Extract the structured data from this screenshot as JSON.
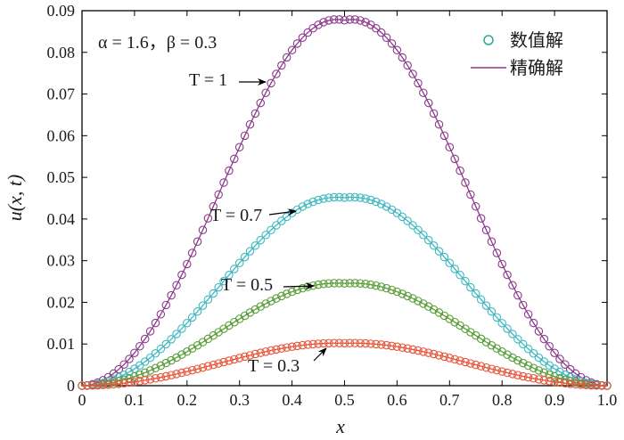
{
  "chart_data": {
    "type": "line",
    "xlabel": "x",
    "ylabel": "u(x, t)",
    "xlim": [
      0,
      1
    ],
    "ylim": [
      0,
      0.09
    ],
    "x_ticks": [
      "0",
      "0.1",
      "0.2",
      "0.3",
      "0.4",
      "0.5",
      "0.6",
      "0.7",
      "0.8",
      "0.9",
      "1.0"
    ],
    "y_ticks": [
      "0",
      "0.01",
      "0.02",
      "0.03",
      "0.04",
      "0.05",
      "0.06",
      "0.07",
      "0.08",
      "0.09"
    ],
    "params_label": "α = 1.6，β = 0.3",
    "legend": {
      "placement": "top-right",
      "numeric_label": "数值解",
      "exact_label": "精确解",
      "marker_color": "#2aa89b",
      "line_color": "#8b3a8b"
    },
    "x": [
      0,
      0.01,
      0.02,
      0.03,
      0.04,
      0.05,
      0.06,
      0.07,
      0.08,
      0.09,
      0.1,
      0.11,
      0.12,
      0.13,
      0.14,
      0.15,
      0.16,
      0.17,
      0.18,
      0.19,
      0.2,
      0.21,
      0.22,
      0.23,
      0.24,
      0.25,
      0.26,
      0.27,
      0.28,
      0.29,
      0.3,
      0.31,
      0.32,
      0.33,
      0.34,
      0.35,
      0.36,
      0.37,
      0.38,
      0.39,
      0.4,
      0.41,
      0.42,
      0.43,
      0.44,
      0.45,
      0.46,
      0.47,
      0.48,
      0.49,
      0.5,
      0.51,
      0.52,
      0.53,
      0.54,
      0.55,
      0.56,
      0.57,
      0.58,
      0.59,
      0.6,
      0.61,
      0.62,
      0.63,
      0.64,
      0.65,
      0.66,
      0.67,
      0.68,
      0.69,
      0.7,
      0.71,
      0.72,
      0.73,
      0.74,
      0.75,
      0.76,
      0.77,
      0.78,
      0.79,
      0.8,
      0.81,
      0.82,
      0.83,
      0.84,
      0.85,
      0.86,
      0.87,
      0.88,
      0.89,
      0.9,
      0.91,
      0.92,
      0.93,
      0.94,
      0.95,
      0.96,
      0.97,
      0.98,
      0.99,
      1.0
    ],
    "series": [
      {
        "name": "T = 1",
        "color": "#8b3a8b",
        "values": [
          0,
          8e-05,
          0.00034,
          0.00075,
          0.00131,
          0.00203,
          0.0029,
          0.00392,
          0.00509,
          0.0064,
          0.00786,
          0.00946,
          0.01119,
          0.01305,
          0.01504,
          0.01714,
          0.01936,
          0.02167,
          0.02409,
          0.0266,
          0.02919,
          0.03185,
          0.03457,
          0.03735,
          0.04016,
          0.04301,
          0.04587,
          0.04874,
          0.0516,
          0.05444,
          0.05724,
          0.06,
          0.0627,
          0.06532,
          0.06786,
          0.07029,
          0.07261,
          0.07481,
          0.07687,
          0.07878,
          0.08053,
          0.08212,
          0.08353,
          0.08475,
          0.08578,
          0.08661,
          0.08724,
          0.08766,
          0.08788,
          0.08789,
          0.0877,
          0.08789,
          0.08788,
          0.08766,
          0.08724,
          0.08661,
          0.08578,
          0.08475,
          0.08353,
          0.08212,
          0.08053,
          0.07878,
          0.07687,
          0.07481,
          0.07261,
          0.07029,
          0.06786,
          0.06532,
          0.0627,
          0.06,
          0.05724,
          0.05444,
          0.0516,
          0.04874,
          0.04587,
          0.04301,
          0.04016,
          0.03735,
          0.03457,
          0.03185,
          0.02919,
          0.0266,
          0.02409,
          0.02167,
          0.01936,
          0.01714,
          0.01504,
          0.01305,
          0.01119,
          0.00946,
          0.00786,
          0.0064,
          0.00509,
          0.00392,
          0.0029,
          0.00203,
          0.00131,
          0.00075,
          0.00034,
          8e-05,
          0
        ]
      },
      {
        "name": "T = 0.7",
        "color": "#3fb8c0",
        "values": [
          0,
          4e-05,
          0.00017,
          0.00039,
          0.00068,
          0.00105,
          0.0015,
          0.00202,
          0.00262,
          0.0033,
          0.00405,
          0.00487,
          0.00576,
          0.00672,
          0.00774,
          0.00882,
          0.00996,
          0.01115,
          0.0124,
          0.01369,
          0.01502,
          0.01639,
          0.01779,
          0.01922,
          0.02067,
          0.02213,
          0.0236,
          0.02508,
          0.02655,
          0.02801,
          0.02945,
          0.03087,
          0.03226,
          0.03361,
          0.03492,
          0.03617,
          0.03736,
          0.03849,
          0.03955,
          0.04054,
          0.04144,
          0.04226,
          0.04298,
          0.04361,
          0.04414,
          0.04457,
          0.04489,
          0.04511,
          0.04522,
          0.04523,
          0.04513,
          0.04523,
          0.04522,
          0.04511,
          0.04489,
          0.04457,
          0.04414,
          0.04361,
          0.04298,
          0.04226,
          0.04144,
          0.04054,
          0.03955,
          0.03849,
          0.03736,
          0.03617,
          0.03492,
          0.03361,
          0.03226,
          0.03087,
          0.02945,
          0.02801,
          0.02655,
          0.02508,
          0.0236,
          0.02213,
          0.02067,
          0.01922,
          0.01779,
          0.01639,
          0.01502,
          0.01369,
          0.0124,
          0.01115,
          0.00996,
          0.00882,
          0.00774,
          0.00672,
          0.00576,
          0.00487,
          0.00405,
          0.0033,
          0.00262,
          0.00202,
          0.0015,
          0.00105,
          0.00068,
          0.00039,
          0.00017,
          4e-05,
          0
        ]
      },
      {
        "name": "T = 0.5",
        "color": "#5a9e3a",
        "values": [
          0,
          2e-05,
          9e-05,
          0.00021,
          0.00037,
          0.00057,
          0.00081,
          0.0011,
          0.00142,
          0.00179,
          0.0022,
          0.00265,
          0.00313,
          0.00365,
          0.00421,
          0.0048,
          0.00542,
          0.00607,
          0.00674,
          0.00745,
          0.00817,
          0.00892,
          0.00968,
          0.01045,
          0.01124,
          0.01204,
          0.01284,
          0.01364,
          0.01444,
          0.01524,
          0.01602,
          0.01679,
          0.01755,
          0.01828,
          0.01899,
          0.01968,
          0.02032,
          0.02094,
          0.02151,
          0.02205,
          0.02254,
          0.02299,
          0.02338,
          0.02372,
          0.02401,
          0.02424,
          0.02442,
          0.02454,
          0.0246,
          0.0246,
          0.02455,
          0.0246,
          0.0246,
          0.02454,
          0.02442,
          0.02424,
          0.02401,
          0.02372,
          0.02338,
          0.02299,
          0.02254,
          0.02205,
          0.02151,
          0.02094,
          0.02032,
          0.01968,
          0.01899,
          0.01828,
          0.01755,
          0.01679,
          0.01602,
          0.01524,
          0.01444,
          0.01364,
          0.01284,
          0.01204,
          0.01124,
          0.01045,
          0.00968,
          0.00892,
          0.00817,
          0.00745,
          0.00674,
          0.00607,
          0.00542,
          0.0048,
          0.00421,
          0.00365,
          0.00313,
          0.00265,
          0.0022,
          0.00179,
          0.00142,
          0.0011,
          0.00081,
          0.00057,
          0.00037,
          0.00021,
          9e-05,
          2e-05,
          0
        ]
      },
      {
        "name": "T = 0.3",
        "color": "#e8553a",
        "values": [
          0,
          1e-05,
          4e-05,
          9e-05,
          0.00015,
          0.00024,
          0.00034,
          0.00046,
          0.00059,
          0.00074,
          0.00091,
          0.0011,
          0.0013,
          0.00151,
          0.00175,
          0.00199,
          0.00225,
          0.00252,
          0.0028,
          0.00309,
          0.00339,
          0.0037,
          0.00402,
          0.00434,
          0.00467,
          0.005,
          0.00533,
          0.00566,
          0.00599,
          0.00632,
          0.00665,
          0.00697,
          0.00728,
          0.00759,
          0.00788,
          0.00816,
          0.00843,
          0.00869,
          0.00893,
          0.00915,
          0.00936,
          0.00954,
          0.0097,
          0.00985,
          0.00997,
          0.01006,
          0.01014,
          0.01019,
          0.01021,
          0.01021,
          0.01019,
          0.01021,
          0.01021,
          0.01019,
          0.01014,
          0.01006,
          0.00997,
          0.00985,
          0.0097,
          0.00954,
          0.00936,
          0.00915,
          0.00893,
          0.00869,
          0.00843,
          0.00816,
          0.00788,
          0.00759,
          0.00728,
          0.00697,
          0.00665,
          0.00632,
          0.00599,
          0.00566,
          0.00533,
          0.005,
          0.00467,
          0.00434,
          0.00402,
          0.0037,
          0.00339,
          0.00309,
          0.0028,
          0.00252,
          0.00225,
          0.00199,
          0.00175,
          0.00151,
          0.0013,
          0.0011,
          0.00091,
          0.00074,
          0.00059,
          0.00046,
          0.00034,
          0.00024,
          0.00015,
          9e-05,
          4e-05,
          1e-05,
          0
        ]
      }
    ]
  }
}
